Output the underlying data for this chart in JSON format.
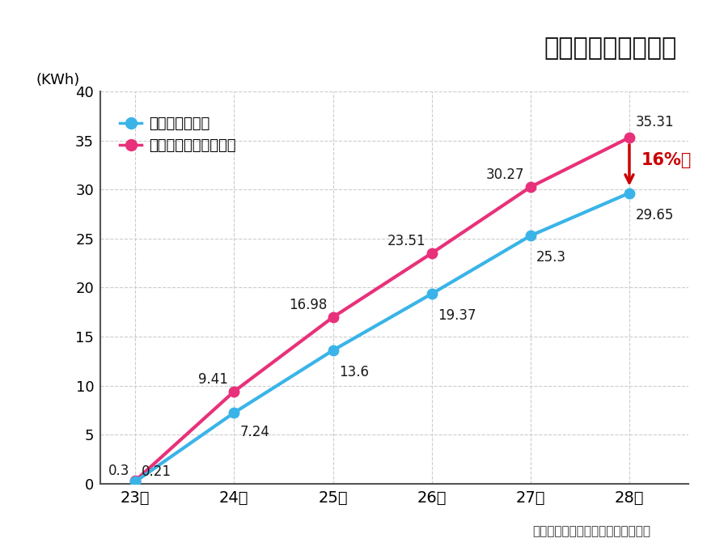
{
  "title": "実建物での実験結果",
  "ylabel": "(KWh)",
  "x_labels": [
    "23日",
    "24日",
    "25日",
    "26日",
    "27日",
    "28日"
  ],
  "x_values": [
    0,
    1,
    2,
    3,
    4,
    5
  ],
  "shikkui": [
    0.21,
    7.24,
    13.6,
    19.37,
    25.3,
    29.65
  ],
  "vinyl": [
    0.3,
    9.41,
    16.98,
    23.51,
    30.27,
    35.31
  ],
  "shikkui_color": "#3ab4e8",
  "vinyl_color": "#e8317a",
  "shikkui_label": "しっくいの部屋",
  "vinyl_label": "ビニールクロスの部屋",
  "ylim": [
    0,
    40
  ],
  "yticks": [
    0,
    5,
    10,
    15,
    20,
    25,
    30,
    35,
    40
  ],
  "annotation_16": "16%減",
  "source_text": "出典：株式会社無添加住宅「漆喰」",
  "bg_color": "#ffffff",
  "plot_bg_color": "#ffffff",
  "grid_color": "#cccccc",
  "border_color": "#555555",
  "reduction_arrow_color": "#cc0000",
  "reduction_text_color": "#cc0000",
  "shikkui_labels": [
    "0.21",
    "7.24",
    "13.6",
    "19.37",
    "25.3",
    "29.65"
  ],
  "vinyl_labels": [
    "0.3",
    "9.41",
    "16.98",
    "23.51",
    "30.27",
    "35.31"
  ]
}
